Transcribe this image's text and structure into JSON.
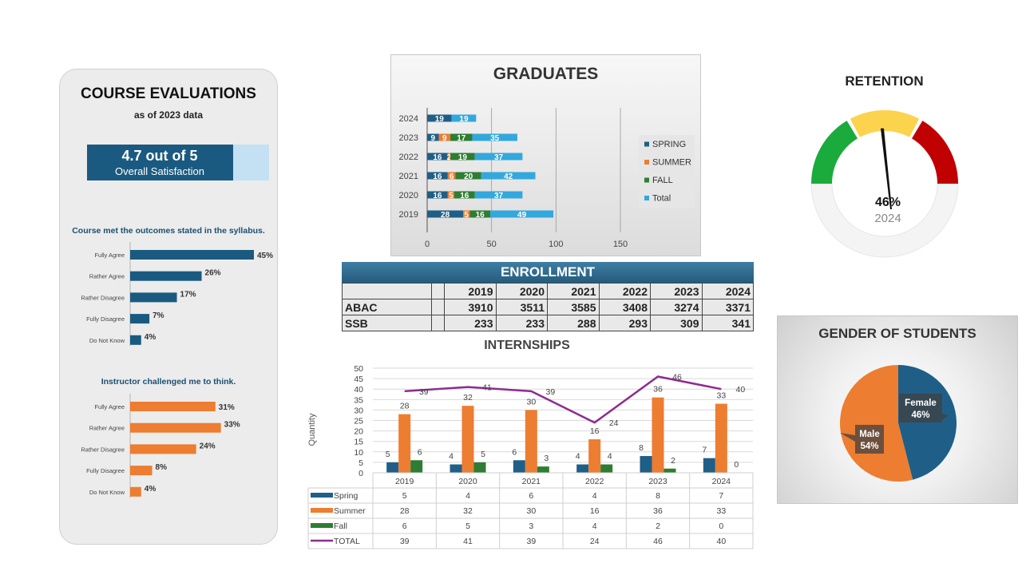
{
  "course_evaluations": {
    "title": "COURSE EVALUATIONS",
    "subtitle": "as of 2023 data",
    "satisfaction_score": "4.7 out of 5",
    "satisfaction_label": "Overall Satisfaction",
    "satisfaction_value": 4.7,
    "satisfaction_max": 5,
    "colors": {
      "score_fill": "#1b5a80",
      "score_track": "#c3e1f2",
      "q1_bar": "#1b5a80",
      "q2_bar": "#ed7d31"
    }
  },
  "chart_data": [
    {
      "id": "outcomes",
      "type": "bar",
      "orientation": "horizontal",
      "title": "Course met the outcomes stated in the syllabus.",
      "categories": [
        "Fully Agree",
        "Rather Agree",
        "Rather Disagree",
        "Fully Disagree",
        "Do Not Know"
      ],
      "values": [
        45,
        26,
        17,
        7,
        4
      ],
      "value_labels": [
        "45%",
        "26%",
        "17%",
        "7%",
        "4%"
      ],
      "color": "#1b5a80"
    },
    {
      "id": "challenged",
      "type": "bar",
      "orientation": "horizontal",
      "title": "Instructor challenged me to think.",
      "categories": [
        "Fully Agree",
        "Rather Agree",
        "Rather Disagree",
        "Fully Disagree",
        "Do Not Know"
      ],
      "values": [
        31,
        33,
        24,
        8,
        4
      ],
      "value_labels": [
        "31%",
        "33%",
        "24%",
        "8%",
        "4%"
      ],
      "color": "#ed7d31"
    },
    {
      "id": "graduates",
      "type": "bar",
      "orientation": "horizontal",
      "stacked": true,
      "title": "GRADUATES",
      "categories": [
        "2024",
        "2023",
        "2022",
        "2021",
        "2020",
        "2019"
      ],
      "series": [
        {
          "name": "SPRING",
          "values": [
            19,
            9,
            16,
            16,
            16,
            28
          ],
          "color": "#1f5f87"
        },
        {
          "name": "SUMMER",
          "values": [
            0,
            9,
            2,
            6,
            5,
            5
          ],
          "color": "#ed7d31"
        },
        {
          "name": "FALL",
          "values": [
            0,
            17,
            19,
            20,
            16,
            16
          ],
          "color": "#2e7d32"
        },
        {
          "name": "Total",
          "values": [
            19,
            35,
            37,
            42,
            37,
            49
          ],
          "color": "#33a8dc"
        }
      ],
      "xticks": [
        "0",
        "50",
        "100",
        "150"
      ],
      "xlim": [
        0,
        150
      ],
      "legend": "right",
      "grid": true
    },
    {
      "id": "retention",
      "type": "gauge",
      "title": "RETENTION",
      "value": 46,
      "value_label": "46%",
      "year": "2024",
      "bands": [
        "#1aab3c",
        "#fbd34d",
        "#c00000"
      ]
    },
    {
      "id": "enrollment",
      "type": "table",
      "title": "ENROLLMENT",
      "columns": [
        "2019",
        "2020",
        "2021",
        "2022",
        "2023",
        "2024"
      ],
      "rows": [
        {
          "label": "ABAC",
          "values": [
            "3910",
            "3511",
            "3585",
            "3408",
            "3274",
            "3371"
          ]
        },
        {
          "label": "SSB",
          "values": [
            "233",
            "233",
            "288",
            "293",
            "309",
            "341"
          ]
        }
      ]
    },
    {
      "id": "internships",
      "type": "bar",
      "title": "INTERNSHIPS",
      "ylabel": "Quantity",
      "ylim": [
        0,
        50
      ],
      "yticks": [
        "0",
        "5",
        "10",
        "15",
        "20",
        "25",
        "30",
        "35",
        "40",
        "45",
        "50"
      ],
      "categories": [
        "2019",
        "2020",
        "2021",
        "2022",
        "2023",
        "2024"
      ],
      "series": [
        {
          "name": "Spring",
          "type": "bar",
          "values": [
            5,
            4,
            6,
            4,
            8,
            7
          ],
          "color": "#1f5f87"
        },
        {
          "name": "Summer",
          "type": "bar",
          "values": [
            28,
            32,
            30,
            16,
            36,
            33
          ],
          "color": "#ed7d31"
        },
        {
          "name": "Fall",
          "type": "bar",
          "values": [
            6,
            5,
            3,
            4,
            2,
            0
          ],
          "color": "#2e7d32"
        },
        {
          "name": "TOTAL",
          "type": "line",
          "values": [
            39,
            41,
            39,
            24,
            46,
            40
          ],
          "color": "#8e2c91"
        }
      ],
      "data_table": true
    },
    {
      "id": "gender",
      "type": "pie",
      "title": "GENDER OF STUDENTS",
      "slices": [
        {
          "name": "Female",
          "value": 46,
          "label": "46%",
          "color": "#1f5f87"
        },
        {
          "name": "Male",
          "value": 54,
          "label": "54%",
          "color": "#ed7d31"
        }
      ]
    }
  ]
}
